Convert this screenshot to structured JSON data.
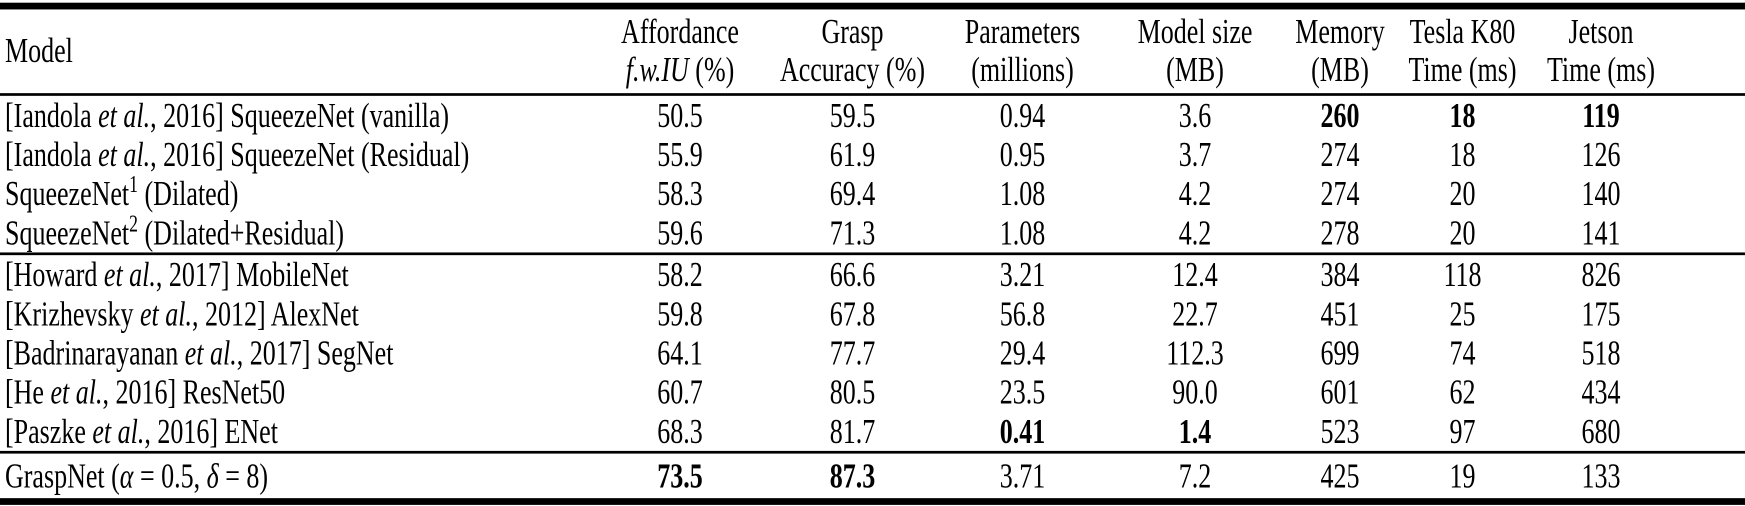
{
  "colors": {
    "text": "#000000",
    "background": "#ffffff",
    "rule": "#000000"
  },
  "table": {
    "columns": [
      {
        "id": "model",
        "label": "Model",
        "sub": ""
      },
      {
        "id": "affordance",
        "label": "Affordance",
        "sub": "*f.w.IU* (%)"
      },
      {
        "id": "grasp",
        "label": "Grasp",
        "sub": "Accuracy (%)"
      },
      {
        "id": "parameters",
        "label": "Parameters",
        "sub": "(millions)"
      },
      {
        "id": "modelsize",
        "label": "Model size",
        "sub": "(MB)"
      },
      {
        "id": "memory",
        "label": "Memory",
        "sub": "(MB)"
      },
      {
        "id": "teslak80",
        "label": "Tesla K80",
        "sub": "Time (ms)"
      },
      {
        "id": "jetson",
        "label": "Jetson",
        "sub": "Time (ms)"
      }
    ],
    "groups": [
      {
        "rows": [
          {
            "model": "[Iandola *et al.*, 2016] SqueezeNet (vanilla)",
            "cells": [
              "50.5",
              "59.5",
              "0.94",
              "3.6",
              "**260**",
              "**18**",
              "**119**"
            ]
          },
          {
            "model": "[Iandola *et al.*, 2016] SqueezeNet (Residual)",
            "cells": [
              "55.9",
              "61.9",
              "0.95",
              "3.7",
              "274",
              "18",
              "126"
            ]
          },
          {
            "model": "SqueezeNet^{1} (Dilated)",
            "cells": [
              "58.3",
              "69.4",
              "1.08",
              "4.2",
              "274",
              "20",
              "140"
            ]
          },
          {
            "model": "SqueezeNet^{2} (Dilated+Residual)",
            "cells": [
              "59.6",
              "71.3",
              "1.08",
              "4.2",
              "278",
              "20",
              "141"
            ]
          }
        ]
      },
      {
        "rows": [
          {
            "model": "[Howard *et al.*, 2017] MobileNet",
            "cells": [
              "58.2",
              "66.6",
              "3.21",
              "12.4",
              "384",
              "118",
              "826"
            ]
          },
          {
            "model": "[Krizhevsky *et al.*, 2012] AlexNet",
            "cells": [
              "59.8",
              "67.8",
              "56.8",
              "22.7",
              "451",
              "25",
              "175"
            ]
          },
          {
            "model": "[Badrinarayanan *et al.*, 2017] SegNet",
            "cells": [
              "64.1",
              "77.7",
              "29.4",
              "112.3",
              "699",
              "74",
              "518"
            ]
          },
          {
            "model": "[He *et al.*, 2016] ResNet50",
            "cells": [
              "60.7",
              "80.5",
              "23.5",
              "90.0",
              "601",
              "62",
              "434"
            ]
          },
          {
            "model": "[Paszke *et al.*, 2016] ENet",
            "cells": [
              "68.3",
              "81.7",
              "**0.41**",
              "**1.4**",
              "523",
              "97",
              "680"
            ]
          }
        ]
      },
      {
        "rows": [
          {
            "model": "GraspNet (*α* = 0.5, *δ* = 8)",
            "cells": [
              "**73.5**",
              "**87.3**",
              "3.71",
              "7.2",
              "425",
              "19",
              "133"
            ]
          }
        ]
      }
    ]
  }
}
